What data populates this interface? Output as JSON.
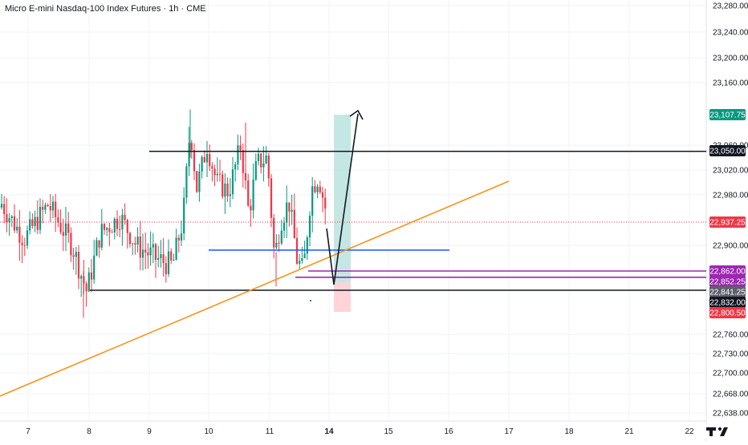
{
  "header": {
    "title": "Micro E-mini Nasdaq-100 Index Futures · 1h · CME"
  },
  "colors": {
    "up": "#089981",
    "down": "#f23645",
    "orange": "#f7931a",
    "blue": "#2962ff",
    "purple": "#9c27b0",
    "black": "#131722",
    "grid": "#f0f3fa",
    "profit_zone": "#b2dfdb",
    "loss_zone": "#ffcdd2"
  },
  "chart_data": {
    "type": "candlestick",
    "title": "Micro E-mini Nasdaq-100 Index Futures · 1h · CME",
    "ylim": [
      22620,
      23300
    ],
    "y_ticks": [
      "23,280.00",
      "23,240.00",
      "23,200.00",
      "23,160.00",
      "23,060.00",
      "23,020.00",
      "22,980.00",
      "22,900.00",
      "22,760.00",
      "22,730.00",
      "22,700.00",
      "22,668.00",
      "22,638.00"
    ],
    "y_tick_values": [
      23280,
      23240,
      23200,
      23160,
      23060,
      23020,
      22980,
      22900,
      22760,
      22730,
      22700,
      22668,
      22638
    ],
    "x_ticks": [
      "7",
      "8",
      "9",
      "10",
      "11",
      "14",
      "15",
      "16",
      "17",
      "18",
      "21",
      "22"
    ],
    "price_labels": [
      {
        "text": "23,107.75",
        "value": 23107.75,
        "color": "#089981"
      },
      {
        "text": "23,050.00",
        "value": 23050.0,
        "color": "#131722"
      },
      {
        "text": "22,937.25",
        "value": 22937.25,
        "color": "#f23645"
      },
      {
        "text": "22,862.00",
        "value": 22862.0,
        "color": "#9c27b0"
      },
      {
        "text": "22,852.25",
        "value": 22852.25,
        "color": "#9c27b0"
      },
      {
        "text": "22,841.25",
        "value": 22841.25,
        "color": "#5d606b"
      },
      {
        "text": "22,832.00",
        "value": 22832.0,
        "color": "#131722"
      },
      {
        "text": "22,800.50",
        "value": 22800.5,
        "color": "#f23645"
      }
    ],
    "current_price": 22937.25,
    "levels": [
      {
        "name": "resistance",
        "value": 23050,
        "color": "#131722"
      },
      {
        "name": "support",
        "value": 22832,
        "color": "#131722"
      },
      {
        "name": "blue-level",
        "value": 22893,
        "color": "#2962ff"
      },
      {
        "name": "purple-level-1",
        "value": 22862,
        "color": "#9c27b0"
      },
      {
        "name": "purple-level-2",
        "value": 22852.25,
        "color": "#9c27b0"
      }
    ],
    "trendline": {
      "from": {
        "x": "before 7",
        "y": 22660
      },
      "to": {
        "x": "17",
        "y": 23008
      }
    },
    "position": {
      "entry": 22844,
      "target": 23107.75,
      "stop": 22800.5
    }
  }
}
